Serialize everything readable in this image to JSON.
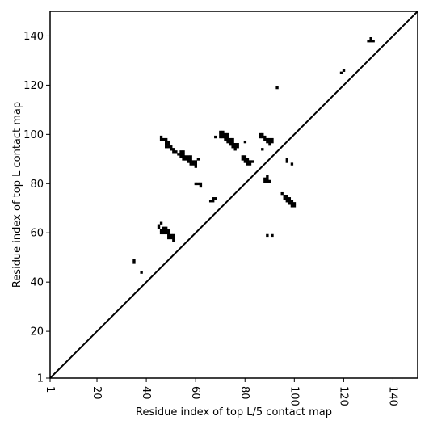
{
  "chart_data": {
    "type": "scatter",
    "title": "",
    "xlabel": "Residue index of top L/5 contact map",
    "ylabel": "Residue index of top L contact map",
    "xlim": [
      1,
      150
    ],
    "ylim": [
      1,
      150
    ],
    "x_ticks": [
      1,
      20,
      40,
      60,
      80,
      100,
      120,
      140
    ],
    "y_ticks": [
      1,
      20,
      40,
      60,
      80,
      100,
      120,
      140
    ],
    "x_tick_labels": [
      "1",
      "20",
      "40",
      "60",
      "80",
      "100",
      "120",
      "140"
    ],
    "y_tick_labels": [
      "1",
      "20",
      "40",
      "60",
      "80",
      "100",
      "120",
      "140"
    ],
    "diagonal_line": [
      [
        1,
        1
      ],
      [
        150,
        150
      ]
    ],
    "grid": false,
    "marker_color": "#000000",
    "contacts": [
      [
        35,
        48
      ],
      [
        35,
        49
      ],
      [
        38,
        44
      ],
      [
        45,
        62
      ],
      [
        45,
        63
      ],
      [
        46,
        64
      ],
      [
        46,
        60
      ],
      [
        46,
        61
      ],
      [
        47,
        60
      ],
      [
        47,
        61
      ],
      [
        47,
        62
      ],
      [
        48,
        60
      ],
      [
        48,
        61
      ],
      [
        48,
        62
      ],
      [
        49,
        58
      ],
      [
        49,
        59
      ],
      [
        49,
        60
      ],
      [
        49,
        61
      ],
      [
        50,
        58
      ],
      [
        50,
        59
      ],
      [
        51,
        57
      ],
      [
        51,
        58
      ],
      [
        51,
        59
      ],
      [
        46,
        98
      ],
      [
        46,
        99
      ],
      [
        47,
        98
      ],
      [
        48,
        95
      ],
      [
        48,
        96
      ],
      [
        48,
        97
      ],
      [
        48,
        98
      ],
      [
        49,
        95
      ],
      [
        49,
        96
      ],
      [
        49,
        97
      ],
      [
        50,
        94
      ],
      [
        50,
        95
      ],
      [
        51,
        93
      ],
      [
        51,
        94
      ],
      [
        52,
        93
      ],
      [
        53,
        92
      ],
      [
        54,
        91
      ],
      [
        54,
        92
      ],
      [
        54,
        93
      ],
      [
        55,
        90
      ],
      [
        55,
        91
      ],
      [
        55,
        92
      ],
      [
        55,
        93
      ],
      [
        56,
        90
      ],
      [
        56,
        91
      ],
      [
        57,
        89
      ],
      [
        57,
        90
      ],
      [
        57,
        91
      ],
      [
        58,
        88
      ],
      [
        58,
        89
      ],
      [
        58,
        90
      ],
      [
        58,
        91
      ],
      [
        59,
        88
      ],
      [
        59,
        89
      ],
      [
        60,
        87
      ],
      [
        60,
        88
      ],
      [
        60,
        89
      ],
      [
        61,
        90
      ],
      [
        60,
        80
      ],
      [
        61,
        80
      ],
      [
        62,
        79
      ],
      [
        62,
        80
      ],
      [
        66,
        73
      ],
      [
        67,
        73
      ],
      [
        67,
        74
      ],
      [
        68,
        74
      ],
      [
        68,
        99
      ],
      [
        70,
        99
      ],
      [
        70,
        100
      ],
      [
        70,
        101
      ],
      [
        71,
        99
      ],
      [
        71,
        100
      ],
      [
        71,
        101
      ],
      [
        72,
        98
      ],
      [
        72,
        99
      ],
      [
        72,
        100
      ],
      [
        73,
        97
      ],
      [
        73,
        98
      ],
      [
        73,
        99
      ],
      [
        73,
        100
      ],
      [
        74,
        96
      ],
      [
        74,
        97
      ],
      [
        74,
        98
      ],
      [
        75,
        95
      ],
      [
        75,
        96
      ],
      [
        75,
        97
      ],
      [
        75,
        98
      ],
      [
        76,
        94
      ],
      [
        76,
        95
      ],
      [
        76,
        96
      ],
      [
        77,
        95
      ],
      [
        77,
        96
      ],
      [
        79,
        90
      ],
      [
        79,
        91
      ],
      [
        80,
        89
      ],
      [
        80,
        90
      ],
      [
        80,
        91
      ],
      [
        80,
        97
      ],
      [
        81,
        88
      ],
      [
        81,
        89
      ],
      [
        81,
        90
      ],
      [
        82,
        88
      ],
      [
        82,
        89
      ],
      [
        83,
        89
      ],
      [
        86,
        99
      ],
      [
        86,
        100
      ],
      [
        87,
        94
      ],
      [
        87,
        99
      ],
      [
        87,
        100
      ],
      [
        88,
        98
      ],
      [
        88,
        99
      ],
      [
        88,
        82
      ],
      [
        88,
        81
      ],
      [
        89,
        97
      ],
      [
        89,
        98
      ],
      [
        89,
        83
      ],
      [
        89,
        82
      ],
      [
        89,
        81
      ],
      [
        89,
        59
      ],
      [
        90,
        96
      ],
      [
        90,
        97
      ],
      [
        90,
        98
      ],
      [
        90,
        81
      ],
      [
        91,
        97
      ],
      [
        91,
        98
      ],
      [
        91,
        59
      ],
      [
        93,
        119
      ],
      [
        95,
        76
      ],
      [
        96,
        75
      ],
      [
        96,
        74
      ],
      [
        97,
        75
      ],
      [
        97,
        74
      ],
      [
        97,
        73
      ],
      [
        97,
        89
      ],
      [
        97,
        90
      ],
      [
        98,
        74
      ],
      [
        98,
        73
      ],
      [
        98,
        72
      ],
      [
        99,
        73
      ],
      [
        99,
        72
      ],
      [
        99,
        71
      ],
      [
        100,
        72
      ],
      [
        100,
        71
      ],
      [
        99,
        88
      ],
      [
        119,
        125
      ],
      [
        120,
        126
      ],
      [
        130,
        138
      ],
      [
        131,
        138
      ],
      [
        131,
        139
      ],
      [
        132,
        138
      ]
    ]
  }
}
